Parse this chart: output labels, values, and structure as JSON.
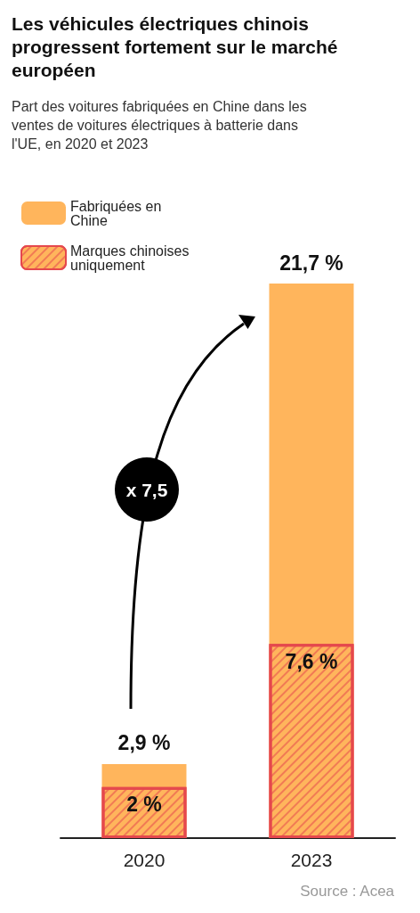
{
  "chart_data": {
    "type": "bar",
    "title": "Les véhicules électriques chinois progressent fortement sur le marché européen",
    "subtitle": "Part des voitures fabriquées en Chine dans les ventes de voitures électriques à batterie dans l'UE, en 2020 et 2023",
    "categories": [
      "2020",
      "2023"
    ],
    "series": [
      {
        "name": "Fabriquées en Chine",
        "color": "#ffb55c",
        "values": [
          2.9,
          21.7
        ],
        "value_labels": [
          "2,9 %",
          "21,7 %"
        ]
      },
      {
        "name": "Marques chinoises uniquement",
        "color": "#e5484d",
        "values": [
          2,
          7.6
        ],
        "value_labels": [
          "2 %",
          "7,6 %"
        ]
      }
    ],
    "legend": "top left",
    "annotations": [
      "x 7,5",
      "Source : Acea"
    ]
  }
}
